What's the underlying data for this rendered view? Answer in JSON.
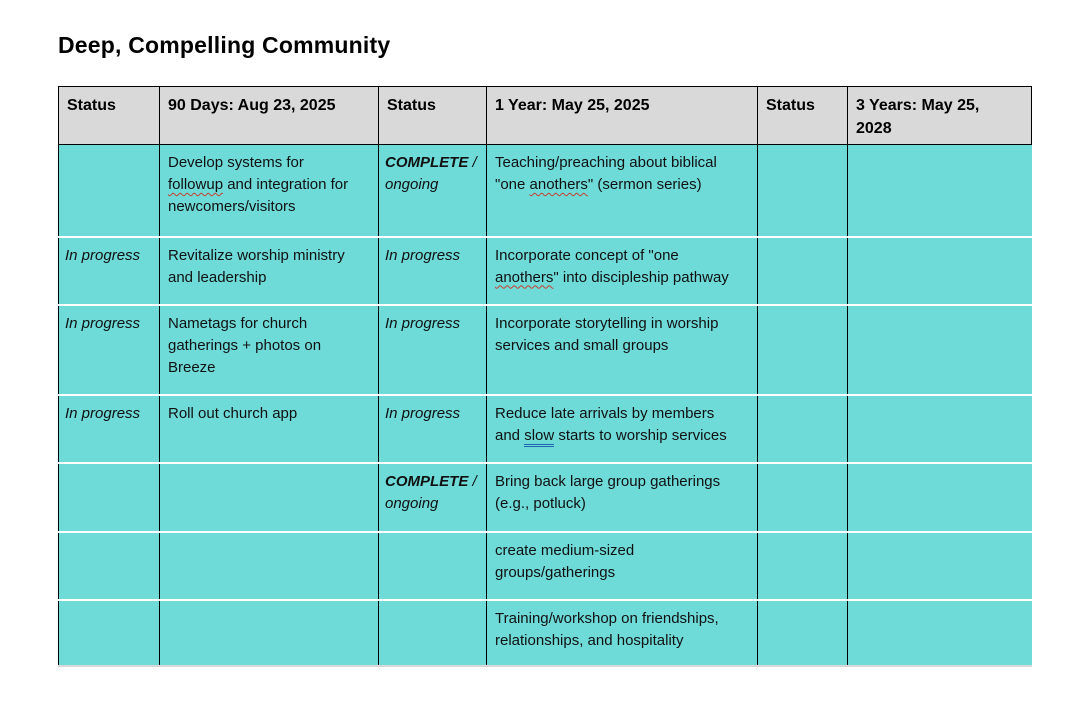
{
  "title": "Deep, Compelling Community",
  "colors": {
    "cell_teal": "#6edbd9",
    "header_gray": "#d9d9d9",
    "spellcheck_red": "#c73f2e",
    "grammar_blue": "#2066b0",
    "text": "#111111"
  },
  "table": {
    "headers": [
      "Status",
      "90 Days: Aug 23, 2025",
      "Status",
      "1 Year: May 25, 2025",
      "Status",
      "3 Years: May 25,\n2028"
    ],
    "rows": [
      {
        "cells": [
          {
            "kind": "status",
            "segments": []
          },
          {
            "kind": "task",
            "segments": [
              {
                "t": "Develop systems for\n"
              },
              {
                "t": "followup",
                "mark": "spell"
              },
              {
                "t": " and integration for\nnewcomers/visitors"
              }
            ]
          },
          {
            "kind": "status",
            "segments": [
              {
                "t": "COMPLETE",
                "b": true
              },
              {
                "t": " /\nongoing"
              }
            ]
          },
          {
            "kind": "task",
            "segments": [
              {
                "t": "Teaching/preaching about biblical\n\"one "
              },
              {
                "t": "anothers",
                "mark": "spell"
              },
              {
                "t": "\" (sermon series)"
              }
            ]
          },
          {
            "kind": "status",
            "segments": []
          },
          {
            "kind": "status",
            "segments": []
          }
        ]
      },
      {
        "cells": [
          {
            "kind": "status",
            "segments": [
              {
                "t": "In progress"
              }
            ]
          },
          {
            "kind": "task",
            "segments": [
              {
                "t": "Revitalize worship ministry\nand leadership"
              }
            ]
          },
          {
            "kind": "status",
            "segments": [
              {
                "t": "In progress"
              }
            ]
          },
          {
            "kind": "task",
            "segments": [
              {
                "t": "Incorporate concept of \"one\n"
              },
              {
                "t": "anothers",
                "mark": "spell"
              },
              {
                "t": "\" into discipleship pathway"
              }
            ]
          },
          {
            "kind": "status",
            "segments": []
          },
          {
            "kind": "status",
            "segments": []
          }
        ]
      },
      {
        "cells": [
          {
            "kind": "status",
            "segments": [
              {
                "t": "In progress"
              }
            ]
          },
          {
            "kind": "task",
            "segments": [
              {
                "t": "Nametags for church\ngatherings + photos on\nBreeze"
              }
            ]
          },
          {
            "kind": "status",
            "segments": [
              {
                "t": "In progress"
              }
            ]
          },
          {
            "kind": "task",
            "segments": [
              {
                "t": "Incorporate storytelling in worship\nservices and small groups"
              }
            ]
          },
          {
            "kind": "status",
            "segments": []
          },
          {
            "kind": "status",
            "segments": []
          }
        ]
      },
      {
        "cells": [
          {
            "kind": "status",
            "segments": [
              {
                "t": "In progress"
              }
            ]
          },
          {
            "kind": "task",
            "segments": [
              {
                "t": "Roll out church app"
              }
            ]
          },
          {
            "kind": "status",
            "segments": [
              {
                "t": "In progress"
              }
            ]
          },
          {
            "kind": "task",
            "segments": [
              {
                "t": "Reduce late arrivals by members\nand "
              },
              {
                "t": "slow",
                "mark": "grammar"
              },
              {
                "t": " starts to worship services"
              }
            ]
          },
          {
            "kind": "status",
            "segments": []
          },
          {
            "kind": "status",
            "segments": []
          }
        ]
      },
      {
        "cells": [
          {
            "kind": "status",
            "segments": []
          },
          {
            "kind": "task",
            "segments": []
          },
          {
            "kind": "status",
            "segments": [
              {
                "t": "COMPLETE",
                "b": true
              },
              {
                "t": " /\nongoing"
              }
            ]
          },
          {
            "kind": "task",
            "segments": [
              {
                "t": "Bring back large group gatherings\n(e.g., potluck)"
              }
            ]
          },
          {
            "kind": "status",
            "segments": []
          },
          {
            "kind": "status",
            "segments": []
          }
        ]
      },
      {
        "cells": [
          {
            "kind": "status",
            "segments": []
          },
          {
            "kind": "task",
            "segments": []
          },
          {
            "kind": "status",
            "segments": []
          },
          {
            "kind": "task",
            "segments": [
              {
                "t": "create medium-sized\ngroups/gatherings"
              }
            ]
          },
          {
            "kind": "status",
            "segments": []
          },
          {
            "kind": "status",
            "segments": []
          }
        ]
      },
      {
        "cells": [
          {
            "kind": "status",
            "segments": []
          },
          {
            "kind": "task",
            "segments": []
          },
          {
            "kind": "status",
            "segments": []
          },
          {
            "kind": "task",
            "segments": [
              {
                "t": "Training/workshop on friendships,\nrelationships, and hospitality"
              }
            ]
          },
          {
            "kind": "status",
            "segments": []
          },
          {
            "kind": "status",
            "segments": []
          }
        ]
      }
    ]
  }
}
